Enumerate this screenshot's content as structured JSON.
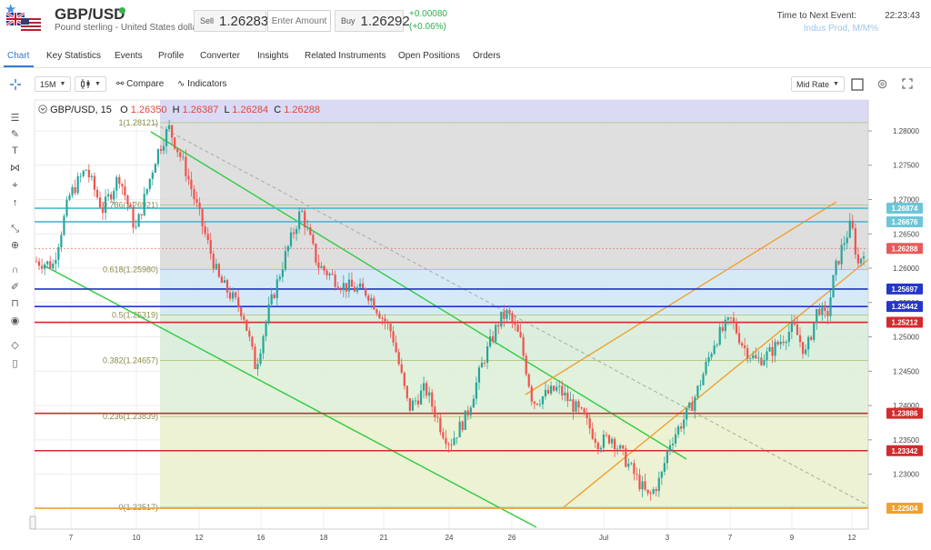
{
  "header": {
    "symbol": "GBP/USD",
    "name": "Pound sterling - United States dollar",
    "sell_label": "Sell",
    "sell_price": "1.26283",
    "amount_placeholder": "Enter Amount",
    "buy_label": "Buy",
    "buy_price": "1.26292",
    "change_abs": "+0.00080",
    "change_pct": "(+0.06%)",
    "next_event_label": "Time to Next Event:",
    "next_event_time": "22:23:43",
    "next_event_name": "Indus Prod, M/M%"
  },
  "tabs": [
    "Chart",
    "Key Statistics",
    "Events",
    "Profile",
    "Converter",
    "Insights",
    "Related Instruments",
    "Open Positions",
    "Orders"
  ],
  "toolbar": {
    "interval": "15M",
    "compare_label": "Compare",
    "indicators_label": "Indicators",
    "rate_mode": "Mid Rate"
  },
  "side_tools": [
    "crosshair-icon",
    "lines-icon",
    "brush-icon",
    "text-icon",
    "pattern-icon",
    "ruler-icon",
    "arrow-up-icon",
    "measure-icon",
    "zoom-icon",
    "magnet-icon",
    "lock-draw-icon",
    "lock-icon",
    "eye-icon",
    "layers-icon",
    "trash-icon"
  ],
  "ohlc": {
    "title": "GBP/USD, 15",
    "o_label": "O",
    "o": "1.26350",
    "h_label": "H",
    "h": "1.26387",
    "l_label": "L",
    "l": "1.26284",
    "c_label": "C",
    "c": "1.26288"
  },
  "colors": {
    "up": "#26a69a",
    "down": "#ef5350",
    "green_channel": "#2ecc40",
    "orange_channel": "#f0a030",
    "cyan_line": "#4ab8d0",
    "blue_line": "#1f35c8",
    "red_line": "#d22b2b",
    "accent": "#2e7cd6"
  },
  "chart_data": {
    "type": "candlestick",
    "title": "",
    "interval": "15",
    "ylim": [
      1.222,
      1.2845
    ],
    "price_ticks": [
      "1.28000",
      "1.27500",
      "1.27000",
      "1.26500",
      "1.26000",
      "1.25500",
      "1.25000",
      "1.24500",
      "1.24000",
      "1.23500",
      "1.23000"
    ],
    "date_ticks": [
      "7",
      "10",
      "12",
      "16",
      "18",
      "21",
      "24",
      "26",
      "Jul",
      "3",
      "7",
      "9",
      "12"
    ],
    "fibonacci": [
      {
        "label": "1(1.28121)",
        "value": 1.28121
      },
      {
        "label": "0.786(1.26921)",
        "value": 1.26921
      },
      {
        "label": "0.618(1.25980)",
        "value": 1.2598
      },
      {
        "label": "0.5(1.25319)",
        "value": 1.25319
      },
      {
        "label": "0.382(1.24657)",
        "value": 1.24657
      },
      {
        "label": "0.236(1.23839)",
        "value": 1.23839
      },
      {
        "label": "0(1.22517)",
        "value": 1.22517
      }
    ],
    "price_markers": [
      {
        "label": "1.26874",
        "value": 1.26874,
        "style": "cyan"
      },
      {
        "label": "1.26676",
        "value": 1.26676,
        "style": "cyan"
      },
      {
        "label": "1.26288",
        "value": 1.26288,
        "style": "current"
      },
      {
        "label": "1.25697",
        "value": 1.25697,
        "style": "blue"
      },
      {
        "label": "1.25442",
        "value": 1.25442,
        "style": "blue"
      },
      {
        "label": "1.25212",
        "value": 1.25212,
        "style": "red"
      },
      {
        "label": "1.23886",
        "value": 1.23886,
        "style": "red"
      },
      {
        "label": "1.23342",
        "value": 1.23342,
        "style": "red"
      },
      {
        "label": "1.22504",
        "value": 1.22504,
        "style": "orange"
      }
    ],
    "price_path": [
      [
        0,
        1.261
      ],
      [
        0.02,
        1.2605
      ],
      [
        0.04,
        1.2705
      ],
      [
        0.06,
        1.2745
      ],
      [
        0.08,
        1.2685
      ],
      [
        0.1,
        1.2735
      ],
      [
        0.12,
        1.2655
      ],
      [
        0.145,
        1.2765
      ],
      [
        0.16,
        1.2805
      ],
      [
        0.18,
        1.2745
      ],
      [
        0.2,
        1.2665
      ],
      [
        0.22,
        1.2585
      ],
      [
        0.25,
        1.2535
      ],
      [
        0.265,
        1.2455
      ],
      [
        0.28,
        1.2535
      ],
      [
        0.3,
        1.2615
      ],
      [
        0.32,
        1.2685
      ],
      [
        0.34,
        1.2605
      ],
      [
        0.37,
        1.2575
      ],
      [
        0.4,
        1.2565
      ],
      [
        0.43,
        1.2505
      ],
      [
        0.45,
        1.2395
      ],
      [
        0.47,
        1.2425
      ],
      [
        0.49,
        1.2365
      ],
      [
        0.5,
        1.2345
      ],
      [
        0.52,
        1.2385
      ],
      [
        0.54,
        1.2465
      ],
      [
        0.56,
        1.2525
      ],
      [
        0.57,
        1.2535
      ],
      [
        0.585,
        1.2495
      ],
      [
        0.6,
        1.2405
      ],
      [
        0.63,
        1.2425
      ],
      [
        0.66,
        1.2385
      ],
      [
        0.68,
        1.2345
      ],
      [
        0.695,
        1.2355
      ],
      [
        0.72,
        1.2305
      ],
      [
        0.74,
        1.2265
      ],
      [
        0.755,
        1.2295
      ],
      [
        0.765,
        1.2345
      ],
      [
        0.79,
        1.2395
      ],
      [
        0.8,
        1.2425
      ],
      [
        0.82,
        1.2495
      ],
      [
        0.84,
        1.2525
      ],
      [
        0.855,
        1.2485
      ],
      [
        0.87,
        1.2465
      ],
      [
        0.885,
        1.2475
      ],
      [
        0.9,
        1.2495
      ],
      [
        0.915,
        1.2515
      ],
      [
        0.93,
        1.2475
      ],
      [
        0.945,
        1.2545
      ],
      [
        0.955,
        1.2525
      ],
      [
        0.965,
        1.2595
      ],
      [
        0.975,
        1.2635
      ],
      [
        0.985,
        1.2665
      ],
      [
        0.993,
        1.2605
      ],
      [
        1.0,
        1.2628
      ]
    ]
  }
}
